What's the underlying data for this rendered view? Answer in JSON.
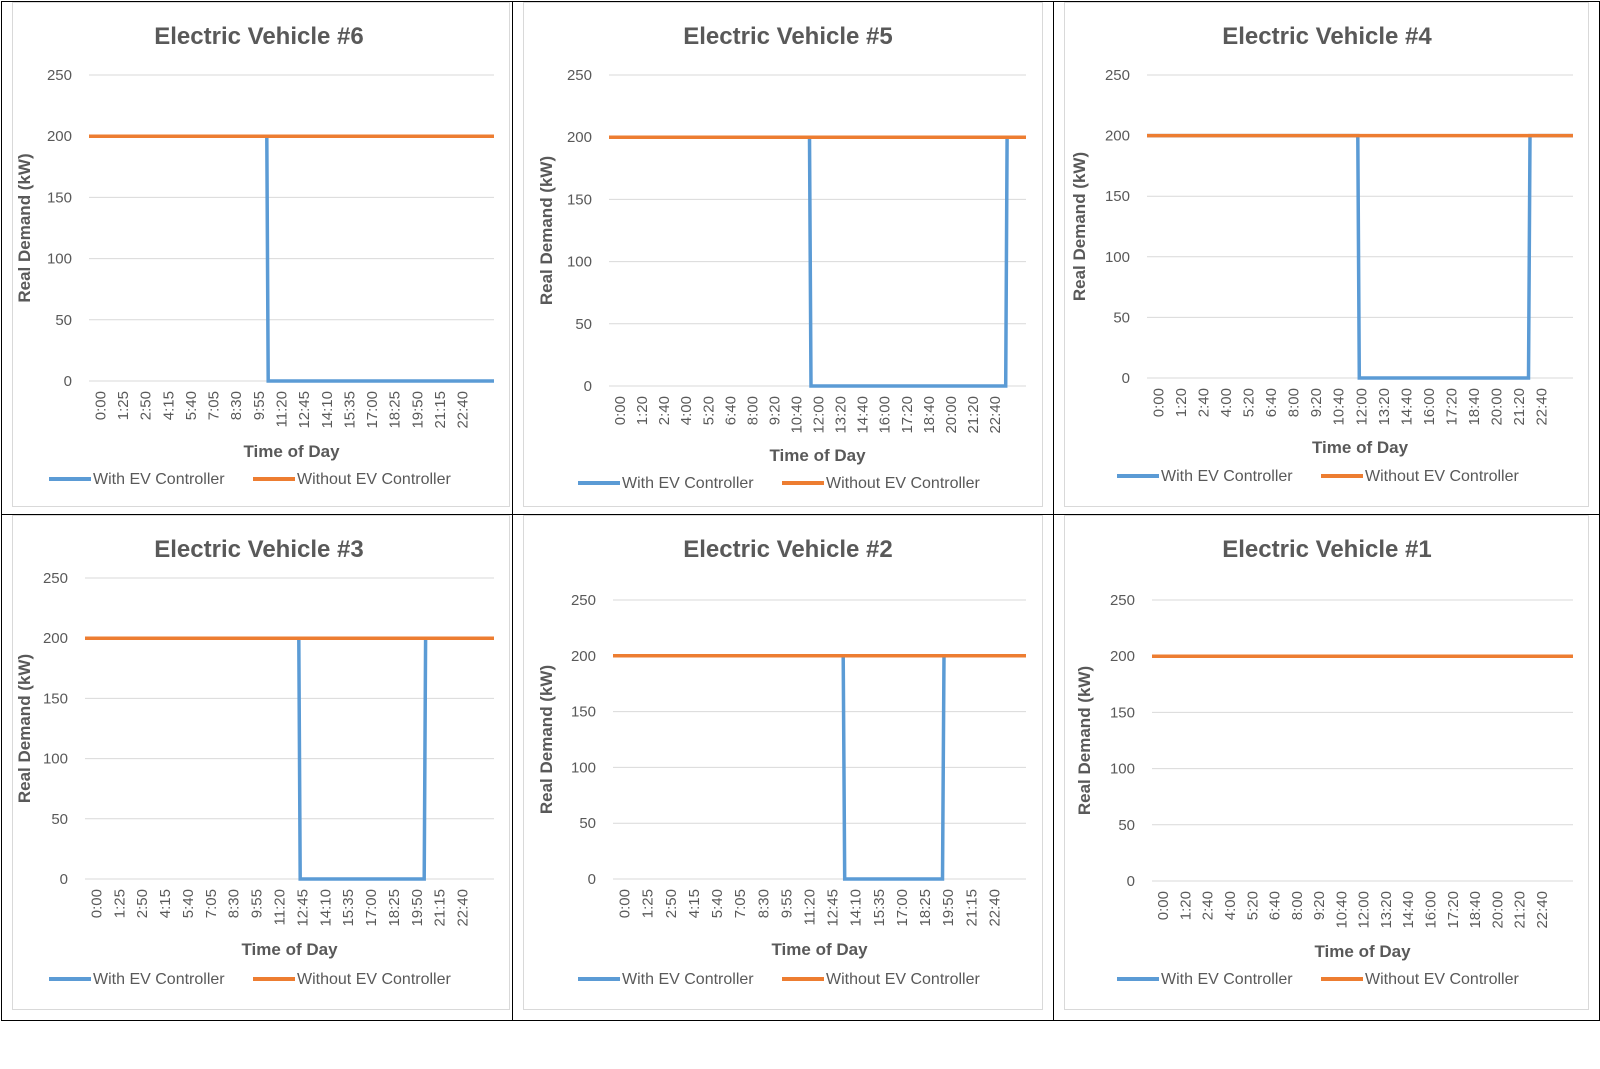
{
  "colors": {
    "with": "#5b9bd5",
    "without": "#ed7d31",
    "grid": "#d9d9d9",
    "text": "#595959"
  },
  "legend": {
    "with_label": "With EV  Controller",
    "without_label": "Without EV Controller"
  },
  "chart_data": [
    {
      "type": "line",
      "title": "Electric Vehicle #6",
      "xlabel": "Time of Day",
      "ylabel": "Real Demand (kW)",
      "ylim": [
        0,
        250
      ],
      "yticks": [
        "0",
        "50",
        "100",
        "150",
        "200",
        "250"
      ],
      "xticks": [
        "0:00",
        "1:25",
        "2:50",
        "4:15",
        "5:40",
        "7:05",
        "8:30",
        "9:55",
        "11:20",
        "12:45",
        "14:10",
        "15:35",
        "17:00",
        "18:25",
        "19:50",
        "21:15",
        "22:40"
      ],
      "xrange_minutes": [
        0,
        1435
      ],
      "series": [
        {
          "name": "With EV  Controller",
          "points": [
            [
              0,
              200
            ],
            [
              630,
              200
            ],
            [
              635,
              0
            ],
            [
              1435,
              0
            ]
          ]
        },
        {
          "name": "Without EV Controller",
          "points": [
            [
              0,
              200
            ],
            [
              1435,
              200
            ]
          ]
        }
      ]
    },
    {
      "type": "line",
      "title": "Electric Vehicle #5",
      "xlabel": "Time of Day",
      "ylabel": "Real Demand (kW)",
      "ylim": [
        0,
        250
      ],
      "yticks": [
        "0",
        "50",
        "100",
        "150",
        "200",
        "250"
      ],
      "xticks": [
        "0:00",
        "1:20",
        "2:40",
        "4:00",
        "5:20",
        "6:40",
        "8:00",
        "9:20",
        "10:40",
        "12:00",
        "13:20",
        "14:40",
        "16:00",
        "17:20",
        "18:40",
        "20:00",
        "21:20",
        "22:40"
      ],
      "xrange_minutes": [
        0,
        1435
      ],
      "series": [
        {
          "name": "With EV  Controller",
          "points": [
            [
              0,
              200
            ],
            [
              690,
              200
            ],
            [
              695,
              0
            ],
            [
              1365,
              0
            ],
            [
              1370,
              200
            ],
            [
              1435,
              200
            ]
          ]
        },
        {
          "name": "Without EV Controller",
          "points": [
            [
              0,
              200
            ],
            [
              1435,
              200
            ]
          ]
        }
      ]
    },
    {
      "type": "line",
      "title": "Electric Vehicle #4",
      "xlabel": "Time of Day",
      "ylabel": "Real Demand (kW)",
      "ylim": [
        0,
        250
      ],
      "yticks": [
        "0",
        "50",
        "100",
        "150",
        "200",
        "250"
      ],
      "xticks": [
        "0:00",
        "1:20",
        "2:40",
        "4:00",
        "5:20",
        "6:40",
        "8:00",
        "9:20",
        "10:40",
        "12:00",
        "13:20",
        "14:40",
        "16:00",
        "17:20",
        "18:40",
        "20:00",
        "21:20",
        "22:40"
      ],
      "xrange_minutes": [
        0,
        1435
      ],
      "series": [
        {
          "name": "With EV  Controller",
          "points": [
            [
              0,
              200
            ],
            [
              710,
              200
            ],
            [
              715,
              0
            ],
            [
              1285,
              0
            ],
            [
              1290,
              200
            ],
            [
              1435,
              200
            ]
          ]
        },
        {
          "name": "Without EV Controller",
          "points": [
            [
              0,
              200
            ],
            [
              1435,
              200
            ]
          ]
        }
      ]
    },
    {
      "type": "line",
      "title": "Electric Vehicle #3",
      "xlabel": "Time of Day",
      "ylabel": "Real Demand (kW)",
      "ylim": [
        0,
        250
      ],
      "yticks": [
        "0",
        "50",
        "100",
        "150",
        "200",
        "250"
      ],
      "xticks": [
        "0:00",
        "1:25",
        "2:50",
        "4:15",
        "5:40",
        "7:05",
        "8:30",
        "9:55",
        "11:20",
        "12:45",
        "14:10",
        "15:35",
        "17:00",
        "18:25",
        "19:50",
        "21:15",
        "22:40"
      ],
      "xrange_minutes": [
        0,
        1435
      ],
      "series": [
        {
          "name": "With EV  Controller",
          "points": [
            [
              0,
              200
            ],
            [
              750,
              200
            ],
            [
              755,
              0
            ],
            [
              1190,
              0
            ],
            [
              1195,
              200
            ],
            [
              1435,
              200
            ]
          ]
        },
        {
          "name": "Without EV Controller",
          "points": [
            [
              0,
              200
            ],
            [
              1435,
              200
            ]
          ]
        }
      ]
    },
    {
      "type": "line",
      "title": "Electric Vehicle #2",
      "xlabel": "Time of Day",
      "ylabel": "Real Demand (kW)",
      "ylim": [
        0,
        250
      ],
      "yticks": [
        "0",
        "50",
        "100",
        "150",
        "200",
        "250"
      ],
      "xticks": [
        "0:00",
        "1:25",
        "2:50",
        "4:15",
        "5:40",
        "7:05",
        "8:30",
        "9:55",
        "11:20",
        "12:45",
        "14:10",
        "15:35",
        "17:00",
        "18:25",
        "19:50",
        "21:15",
        "22:40"
      ],
      "xrange_minutes": [
        0,
        1435
      ],
      "series": [
        {
          "name": "With EV  Controller",
          "points": [
            [
              0,
              200
            ],
            [
              800,
              200
            ],
            [
              805,
              0
            ],
            [
              1145,
              0
            ],
            [
              1150,
              200
            ],
            [
              1435,
              200
            ]
          ]
        },
        {
          "name": "Without EV Controller",
          "points": [
            [
              0,
              200
            ],
            [
              1435,
              200
            ]
          ]
        }
      ]
    },
    {
      "type": "line",
      "title": "Electric Vehicle #1",
      "xlabel": "Time of Day",
      "ylabel": "Real Demand (kW)",
      "ylim": [
        0,
        250
      ],
      "yticks": [
        "0",
        "50",
        "100",
        "150",
        "200",
        "250"
      ],
      "xticks": [
        "0:00",
        "1:20",
        "2:40",
        "4:00",
        "5:20",
        "6:40",
        "8:00",
        "9:20",
        "10:40",
        "12:00",
        "13:20",
        "14:40",
        "16:00",
        "17:20",
        "18:40",
        "20:00",
        "21:20",
        "22:40"
      ],
      "xrange_minutes": [
        0,
        1435
      ],
      "series": [
        {
          "name": "With EV  Controller",
          "points": [
            [
              0,
              200
            ],
            [
              1435,
              200
            ]
          ]
        },
        {
          "name": "Without EV Controller",
          "points": [
            [
              0,
              200
            ],
            [
              1435,
              200
            ]
          ]
        }
      ]
    }
  ]
}
